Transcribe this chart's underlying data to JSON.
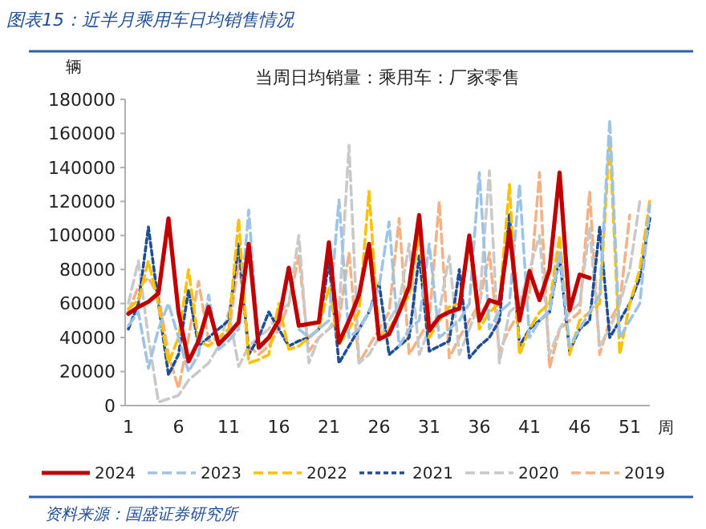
{
  "chart_data": {
    "type": "line",
    "title": "图表15：近半月乘用车日均销售情况",
    "subtitle": "当周日均销量：乘用车：厂家零售",
    "ylabel": "辆",
    "xlabel": "周",
    "x": [
      1,
      2,
      3,
      4,
      5,
      6,
      7,
      8,
      9,
      10,
      11,
      12,
      13,
      14,
      15,
      16,
      17,
      18,
      19,
      20,
      21,
      22,
      23,
      24,
      25,
      26,
      27,
      28,
      29,
      30,
      31,
      32,
      33,
      34,
      35,
      36,
      37,
      38,
      39,
      40,
      41,
      42,
      43,
      44,
      45,
      46,
      47,
      48,
      49,
      50,
      51,
      52,
      53
    ],
    "xlim": [
      1,
      53
    ],
    "xticks": [
      1,
      6,
      11,
      16,
      21,
      26,
      31,
      36,
      41,
      46,
      51
    ],
    "ylim": [
      0,
      180000
    ],
    "yticks": [
      0,
      20000,
      40000,
      60000,
      80000,
      100000,
      120000,
      140000,
      160000,
      180000
    ],
    "grid": false,
    "legend": "bottom",
    "series": [
      {
        "name": "2024",
        "color": "#c00000",
        "line_style": "solid",
        "values": [
          54000,
          58000,
          61000,
          66000,
          110000,
          55000,
          26000,
          38000,
          58000,
          36000,
          42000,
          49000,
          95000,
          34000,
          40000,
          50000,
          81000,
          47000,
          48000,
          49000,
          96000,
          37000,
          50000,
          65000,
          95000,
          39000,
          42000,
          55000,
          70000,
          112000,
          44000,
          52000,
          55000,
          57000,
          100000,
          50000,
          62000,
          60000,
          103000,
          50000,
          79000,
          62000,
          80000,
          137000,
          56000,
          77000,
          75000,
          null,
          null,
          null,
          null,
          null,
          null
        ]
      },
      {
        "name": "2023",
        "color": "#9dc3e6",
        "line_style": "dashed",
        "values": [
          47000,
          55000,
          22000,
          45000,
          60000,
          40000,
          20000,
          30000,
          65000,
          33000,
          38000,
          45000,
          115000,
          35000,
          40000,
          48000,
          80000,
          45000,
          40000,
          45000,
          50000,
          121000,
          40000,
          45000,
          55000,
          70000,
          108000,
          35000,
          45000,
          50000,
          95000,
          40000,
          45000,
          50000,
          60000,
          137000,
          45000,
          55000,
          60000,
          130000,
          40000,
          50000,
          55000,
          90000,
          35000,
          45000,
          55000,
          65000,
          168000,
          40000,
          50000,
          60000,
          118000
        ]
      },
      {
        "name": "2022",
        "color": "#ffc000",
        "line_style": "dashed",
        "values": [
          57000,
          62000,
          85000,
          60000,
          25000,
          40000,
          80000,
          38000,
          35000,
          40000,
          45000,
          110000,
          25000,
          27000,
          30000,
          60000,
          33000,
          35000,
          40000,
          45000,
          70000,
          36000,
          45000,
          55000,
          126000,
          40000,
          45000,
          55000,
          65000,
          100000,
          40000,
          50000,
          58000,
          60000,
          95000,
          45000,
          55000,
          60000,
          130000,
          30000,
          45000,
          55000,
          60000,
          100000,
          30000,
          50000,
          55000,
          60000,
          157000,
          30000,
          60000,
          80000,
          121000
        ]
      },
      {
        "name": "2021",
        "color": "#1f4e99",
        "line_style": "dotted",
        "values": [
          45000,
          60000,
          105000,
          60000,
          18000,
          30000,
          68000,
          35000,
          40000,
          45000,
          50000,
          95000,
          30000,
          40000,
          55000,
          45000,
          35000,
          38000,
          40000,
          45000,
          85000,
          25000,
          35000,
          45000,
          55000,
          72000,
          30000,
          35000,
          40000,
          88000,
          32000,
          35000,
          38000,
          80000,
          28000,
          35000,
          40000,
          50000,
          113000,
          35000,
          45000,
          50000,
          55000,
          88000,
          32000,
          45000,
          50000,
          105000,
          40000,
          50000,
          60000,
          75000,
          110000
        ]
      },
      {
        "name": "2020",
        "color": "#c9c9c9",
        "line_style": "dashed",
        "values": [
          60000,
          85000,
          40000,
          2000,
          4000,
          6000,
          15000,
          20000,
          25000,
          35000,
          55000,
          23000,
          35000,
          40000,
          45000,
          55000,
          60000,
          100000,
          25000,
          40000,
          45000,
          55000,
          153000,
          25000,
          30000,
          40000,
          50000,
          60000,
          95000,
          30000,
          45000,
          55000,
          88000,
          30000,
          45000,
          60000,
          138000,
          25000,
          55000,
          60000,
          80000,
          100000,
          30000,
          45000,
          55000,
          60000,
          105000,
          35000,
          45000,
          60000,
          80000,
          120000,
          null
        ]
      },
      {
        "name": "2019",
        "color": "#f4b183",
        "line_style": "dashed",
        "values": [
          55000,
          70000,
          75000,
          65000,
          30000,
          10000,
          40000,
          73000,
          38000,
          40000,
          42000,
          85000,
          35000,
          30000,
          35000,
          45000,
          60000,
          88000,
          32000,
          40000,
          45000,
          50000,
          90000,
          25000,
          35000,
          45000,
          55000,
          110000,
          30000,
          40000,
          50000,
          120000,
          28000,
          40000,
          50000,
          60000,
          90000,
          32000,
          45000,
          55000,
          65000,
          137000,
          22000,
          45000,
          50000,
          55000,
          126000,
          30000,
          50000,
          60000,
          112000,
          null,
          null
        ]
      }
    ],
    "annotations": [
      "资料来源：国盛证券研究所"
    ]
  }
}
